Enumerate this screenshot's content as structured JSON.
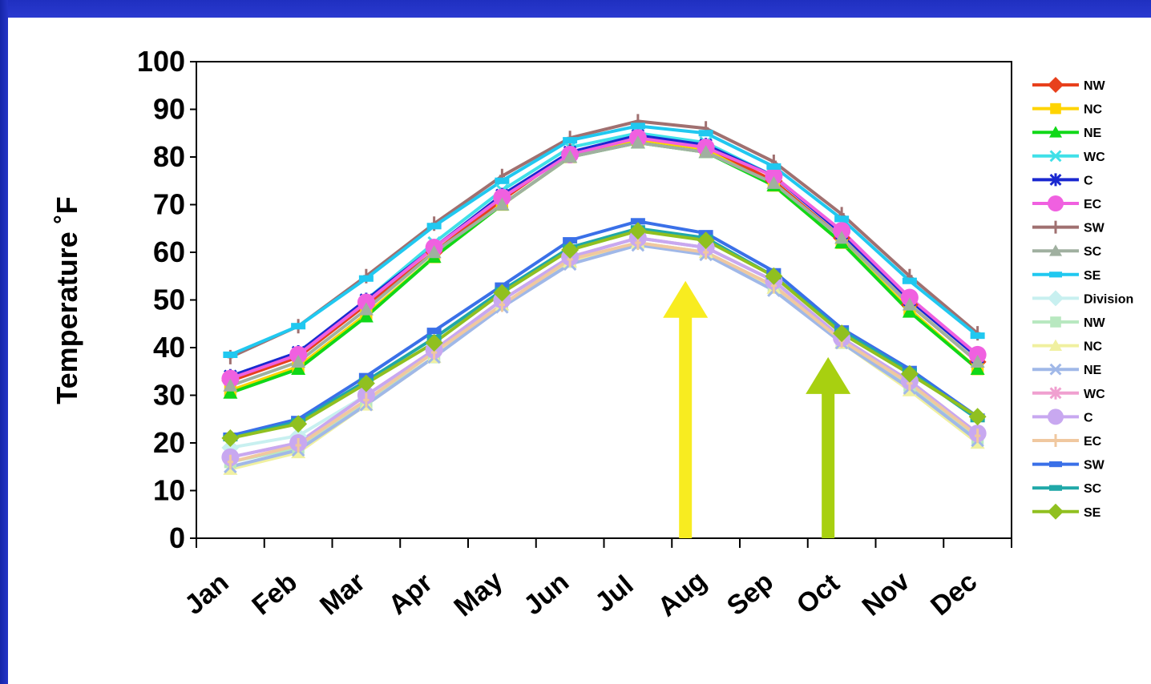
{
  "chart_data": {
    "type": "line",
    "title": "",
    "xlabel": "",
    "ylabel": "Temperature ˚F",
    "ylim": [
      0,
      100
    ],
    "yticks": [
      "0",
      "10",
      "20",
      "30",
      "40",
      "50",
      "60",
      "70",
      "80",
      "90",
      "100"
    ],
    "categories": [
      "Jan",
      "Feb",
      "Mar",
      "Apr",
      "May",
      "Jun",
      "Jul",
      "Aug",
      "Sep",
      "Oct",
      "Nov",
      "Dec"
    ],
    "grid": false,
    "legend_position": "right",
    "series": [
      {
        "name": "NW",
        "color": "#e8401c",
        "marker": "diamond",
        "group": "high",
        "values": [
          33,
          38,
          49,
          60,
          71,
          81,
          84,
          82,
          75,
          63,
          49,
          37
        ]
      },
      {
        "name": "NC",
        "color": "#ffd400",
        "marker": "square",
        "group": "high",
        "values": [
          31,
          36,
          47,
          59,
          70,
          80,
          83.5,
          81.5,
          74,
          62,
          48,
          35.5
        ]
      },
      {
        "name": "NE",
        "color": "#10d818",
        "marker": "triangle",
        "group": "high",
        "values": [
          30.5,
          35.5,
          46.5,
          59,
          70,
          80,
          83,
          81,
          74,
          62,
          47.5,
          35.5
        ]
      },
      {
        "name": "WC",
        "color": "#40e0e8",
        "marker": "x",
        "group": "high",
        "values": [
          34,
          39,
          50,
          62,
          73,
          82,
          85,
          83,
          76,
          64,
          50,
          38
        ]
      },
      {
        "name": "C",
        "color": "#1a28d0",
        "marker": "star",
        "group": "high",
        "values": [
          34,
          39,
          50,
          61,
          72,
          81,
          84.5,
          82.5,
          76,
          64,
          50,
          38
        ]
      },
      {
        "name": "EC",
        "color": "#f060e0",
        "marker": "circle",
        "group": "high",
        "values": [
          33.5,
          38.5,
          49.5,
          61,
          71.5,
          80.5,
          84,
          82,
          76,
          64.5,
          50.5,
          38.5
        ]
      },
      {
        "name": "SW",
        "color": "#a07070",
        "marker": "plus",
        "group": "high",
        "values": [
          38,
          44.5,
          55,
          66,
          76,
          84,
          87.5,
          86,
          79,
          68,
          55,
          43
        ]
      },
      {
        "name": "SC",
        "color": "#a0b0a0",
        "marker": "triangle",
        "group": "high",
        "values": [
          32,
          37,
          48,
          60,
          70,
          80,
          83,
          81,
          74.5,
          63,
          49,
          37
        ]
      },
      {
        "name": "SE",
        "color": "#20c8f0",
        "marker": "bar",
        "group": "high",
        "values": [
          38.5,
          44.5,
          54.5,
          65.5,
          75,
          83.5,
          86.5,
          85,
          78,
          67,
          54,
          42.5
        ]
      },
      {
        "name": "Division",
        "color": "#c8f0f0",
        "marker": "diamond",
        "group": "low",
        "values": [
          19,
          21.5,
          30,
          39,
          50,
          59,
          63,
          61,
          54,
          42,
          33,
          22
        ]
      },
      {
        "name": "NW",
        "color": "#b8e8c0",
        "marker": "square",
        "group": "low",
        "values": [
          16,
          19,
          28.5,
          38,
          49,
          58,
          62,
          60,
          53,
          41,
          32,
          21
        ]
      },
      {
        "name": "NC",
        "color": "#f0f0a0",
        "marker": "triangle",
        "group": "low",
        "values": [
          14.5,
          18,
          28,
          38,
          49,
          58,
          62,
          60,
          52.5,
          41,
          31,
          20
        ]
      },
      {
        "name": "NE",
        "color": "#a0b8e8",
        "marker": "x",
        "group": "low",
        "values": [
          15,
          18.5,
          28,
          38,
          48.5,
          57.5,
          61.5,
          59.5,
          52,
          41,
          31.5,
          20.5
        ]
      },
      {
        "name": "WC",
        "color": "#f0a0d0",
        "marker": "star",
        "group": "low",
        "values": [
          17,
          20,
          30,
          39.5,
          50,
          59,
          63,
          61,
          54,
          42,
          33,
          22
        ]
      },
      {
        "name": "C",
        "color": "#c8a8f0",
        "marker": "circle",
        "group": "low",
        "values": [
          17,
          20,
          30,
          39.5,
          50,
          59,
          63,
          61,
          54,
          42,
          33,
          22
        ]
      },
      {
        "name": "EC",
        "color": "#f0c8a0",
        "marker": "plus",
        "group": "low",
        "values": [
          16,
          19.5,
          29,
          39,
          49,
          58.5,
          62,
          60,
          53,
          41.5,
          32.5,
          21.5
        ]
      },
      {
        "name": "SW",
        "color": "#3a70e8",
        "marker": "bar",
        "group": "low",
        "values": [
          21.5,
          25,
          34,
          43.5,
          53,
          62.5,
          66.5,
          64,
          56,
          44,
          35.5,
          25.5
        ]
      },
      {
        "name": "SC",
        "color": "#20a8a8",
        "marker": "bar",
        "group": "low",
        "values": [
          21,
          24.5,
          33,
          42,
          52,
          61,
          65,
          63,
          55,
          43.5,
          35,
          25
        ]
      },
      {
        "name": "SE",
        "color": "#90c020",
        "marker": "diamond",
        "group": "low",
        "values": [
          21,
          24,
          32.5,
          41,
          51.5,
          60.5,
          64.5,
          62.5,
          55,
          43,
          34.5,
          25.5
        ]
      }
    ],
    "annotations": [
      {
        "type": "arrow",
        "color": "#f8ec20",
        "x_month_index": 7.2,
        "y_from": 0,
        "y_to": 54
      },
      {
        "type": "arrow",
        "color": "#a8d010",
        "x_month_index": 9.3,
        "y_from": 0,
        "y_to": 38
      }
    ]
  }
}
